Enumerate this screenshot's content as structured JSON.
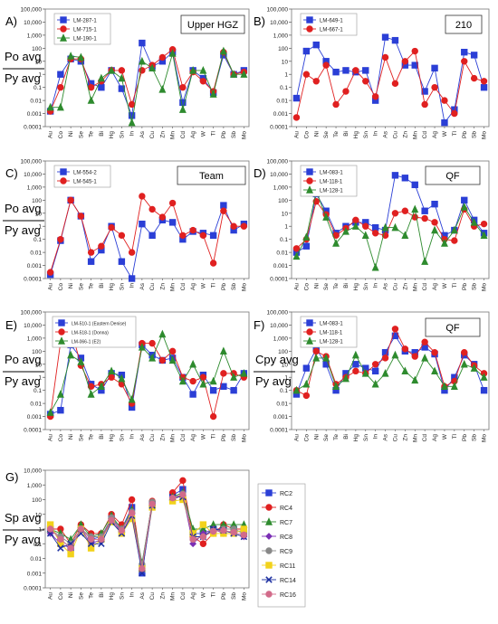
{
  "elements": [
    "Au",
    "Co",
    "Ni",
    "Se",
    "Te",
    "Bi",
    "Hg",
    "Sn",
    "In",
    "As",
    "Cu",
    "Zn",
    "Mn",
    "Cd",
    "Ag",
    "W",
    "Tl",
    "Pb",
    "Sb",
    "Mo"
  ],
  "colors": {
    "blue": "#2b3fd6",
    "red": "#e02020",
    "green": "#2e8b2e",
    "purple": "#7b2fb5",
    "yellow": "#f2d21b",
    "grey": "#888888",
    "pink": "#d26b8a",
    "navy": "#1c2fa0"
  },
  "chart_data": [
    {
      "panel_label": "A)",
      "box_label": "Upper HGZ",
      "type": "line",
      "y_label_num": "Po avg",
      "y_label_den": "Py avg",
      "ylim": [
        0.0001,
        100000
      ],
      "y_scale": "log",
      "y_ticks": [
        "100,000",
        "10,000",
        "1,000",
        "100",
        "10",
        "1",
        "0.1",
        "0.01",
        "0.001",
        "0.0001"
      ],
      "series": [
        {
          "name": "LM-287-1",
          "color": "blue",
          "marker": "square",
          "values": [
            0.0015,
            1,
            15,
            10,
            0.2,
            0.1,
            2,
            0.08,
            0.0007,
            250,
            4,
            10,
            50,
            0.007,
            2,
            0.5,
            0.04,
            30,
            1,
            2
          ]
        },
        {
          "name": "LM-715-1",
          "color": "red",
          "marker": "circle",
          "values": [
            0.0015,
            0.1,
            15,
            15,
            0.1,
            0.3,
            2,
            2,
            0.005,
            2,
            5,
            20,
            80,
            0.1,
            1.5,
            0.3,
            0.05,
            50,
            1,
            1.5
          ]
        },
        {
          "name": "LM-190-1",
          "color": "green",
          "marker": "triangle",
          "values": [
            0.003,
            0.003,
            25,
            20,
            0.01,
            0.5,
            2,
            0.5,
            0.0002,
            10,
            3,
            0.07,
            40,
            0.002,
            2,
            2,
            0.03,
            60,
            1,
            1
          ]
        }
      ]
    },
    {
      "panel_label": "B)",
      "box_label": "210",
      "type": "line",
      "y_label_num": "",
      "y_label_den": "",
      "ylim": [
        0.0001,
        100000
      ],
      "y_scale": "log",
      "y_ticks": [
        "100,000",
        "10,000",
        "1,000",
        "100",
        "10",
        "1",
        "0.1",
        "0.01",
        "0.001",
        "0.0001"
      ],
      "series": [
        {
          "name": "LM-649-1",
          "color": "blue",
          "marker": "square",
          "values": [
            0.015,
            60,
            180,
            10,
            1.5,
            2,
            1.5,
            2,
            0.01,
            700,
            400,
            5,
            5,
            0.05,
            3,
            0.0002,
            0.002,
            50,
            30,
            0.1
          ]
        },
        {
          "name": "LM-667-1",
          "color": "red",
          "marker": "circle",
          "values": [
            0.0005,
            1,
            0.3,
            5,
            0.005,
            0.05,
            2,
            0.3,
            0.02,
            20,
            0.2,
            10,
            60,
            0.005,
            0.1,
            0.01,
            0.001,
            10,
            0.5,
            0.3
          ]
        }
      ]
    },
    {
      "panel_label": "C)",
      "box_label": "Team",
      "type": "line",
      "y_label_num": "Po avg",
      "y_label_den": "Py avg",
      "ylim": [
        0.0001,
        100000
      ],
      "y_scale": "log",
      "y_ticks": [
        "100,000",
        "10,000",
        "1,000",
        "100",
        "10",
        "1",
        "0.1",
        "0.01",
        "0.001",
        "0.0001"
      ],
      "series": [
        {
          "name": "LM-554-2",
          "color": "blue",
          "marker": "square",
          "values": [
            0.0002,
            0.08,
            100,
            6,
            0.002,
            0.015,
            1,
            0.002,
            0.0001,
            1.5,
            0.2,
            3,
            2,
            0.1,
            0.4,
            0.3,
            0.2,
            40,
            0.5,
            1.5
          ]
        },
        {
          "name": "LM-545-1",
          "color": "red",
          "marker": "circle",
          "values": [
            0.0003,
            0.1,
            100,
            6,
            0.01,
            0.03,
            0.8,
            0.2,
            0.01,
            200,
            20,
            5,
            60,
            0.2,
            0.5,
            0.2,
            0.0015,
            15,
            1,
            1
          ]
        }
      ]
    },
    {
      "panel_label": "D)",
      "box_label": "QF",
      "type": "line",
      "y_label_num": "",
      "y_label_den": "",
      "ylim": [
        0.0001,
        100000
      ],
      "y_scale": "log",
      "y_ticks": [
        "100,000",
        "10,000",
        "1,000",
        "100",
        "10",
        "1",
        "0.1",
        "0.01",
        "0.001",
        "0.0001"
      ],
      "series": [
        {
          "name": "LM-083-1",
          "color": "blue",
          "marker": "square",
          "values": [
            0.01,
            0.03,
            300,
            15,
            0.3,
            1,
            2,
            2,
            0.8,
            0.5,
            8000,
            5000,
            1500,
            15,
            50,
            0.2,
            0.5,
            100,
            3,
            0.3
          ]
        },
        {
          "name": "LM-118-1",
          "color": "red",
          "marker": "circle",
          "values": [
            0.02,
            0.1,
            80,
            8,
            0.2,
            0.7,
            3,
            1,
            0.3,
            0.2,
            10,
            15,
            5,
            4,
            2,
            0.1,
            0.08,
            20,
            1,
            1.5
          ]
        },
        {
          "name": "LM-128-1",
          "color": "green",
          "marker": "triangle",
          "values": [
            0.005,
            0.15,
            500,
            5,
            0.05,
            0.4,
            1,
            0.2,
            0.0007,
            0.8,
            0.8,
            0.2,
            20,
            0.002,
            0.5,
            0.05,
            0.5,
            30,
            2,
            0.2
          ]
        }
      ]
    },
    {
      "panel_label": "E)",
      "box_label": "",
      "type": "line",
      "y_label_num": "Po avg",
      "y_label_den": "Py avg",
      "ylim": [
        0.0001,
        100000
      ],
      "y_scale": "log",
      "y_ticks": [
        "100,000",
        "10,000",
        "1,000",
        "100",
        "10",
        "1",
        "0.1",
        "0.01",
        "0.001",
        "0.0001"
      ],
      "series": [
        {
          "name": "LM-510-1 (Eastern Denise)",
          "color": "blue",
          "marker": "square",
          "values": [
            0.0015,
            0.003,
            300,
            30,
            0.3,
            0.1,
            2,
            1.5,
            0.005,
            300,
            50,
            20,
            30,
            1,
            0.05,
            1.5,
            0.1,
            0.2,
            0.1,
            2
          ]
        },
        {
          "name": "LM-518-1 (Donna)",
          "color": "red",
          "marker": "circle",
          "values": [
            0.001,
            500,
            6000,
            8,
            0.2,
            0.3,
            1,
            0.3,
            0.01,
            400,
            400,
            20,
            100,
            1,
            0.5,
            1,
            0.001,
            2,
            2,
            1
          ]
        },
        {
          "name": "LM-066-1 (E2)",
          "color": "green",
          "marker": "triangle",
          "values": [
            0.002,
            0.05,
            50,
            15,
            0.05,
            0.2,
            3,
            0.8,
            0.02,
            200,
            30,
            2000,
            20,
            0.5,
            10,
            0.3,
            0.5,
            100,
            1,
            2
          ]
        }
      ]
    },
    {
      "panel_label": "F)",
      "box_label": "QF",
      "type": "line",
      "y_label_num": "Cpy avg",
      "y_label_den": "Py avg",
      "ylim": [
        0.0001,
        100000
      ],
      "y_scale": "log",
      "y_ticks": [
        "100,000",
        "10,000",
        "1,000",
        "100",
        "10",
        "1",
        "0.1",
        "0.01",
        "0.001",
        "0.0001"
      ],
      "series": [
        {
          "name": "LM-083-1",
          "color": "blue",
          "marker": "square",
          "values": [
            0.05,
            5,
            150,
            10,
            0.1,
            2,
            10,
            5,
            3,
            80,
            1500,
            100,
            80,
            200,
            60,
            0.1,
            1,
            50,
            10,
            0.1
          ]
        },
        {
          "name": "LM-118-1",
          "color": "red",
          "marker": "circle",
          "values": [
            0.1,
            0.04,
            100,
            40,
            0.3,
            1,
            3,
            2,
            10,
            30,
            5000,
            150,
            40,
            500,
            80,
            0.2,
            0.5,
            80,
            8,
            2
          ]
        },
        {
          "name": "LM-128-1",
          "color": "green",
          "marker": "triangle",
          "values": [
            0.1,
            0.3,
            30,
            30,
            0.2,
            0.8,
            50,
            2,
            0.3,
            2,
            50,
            3,
            0.6,
            30,
            3,
            0.2,
            0.2,
            10,
            5,
            1
          ]
        }
      ]
    },
    {
      "panel_label": "G)",
      "box_label": "",
      "type": "line",
      "y_label_num": "Sp avg",
      "y_label_den": "Py avg",
      "ylim": [
        0.0001,
        10000
      ],
      "y_scale": "log",
      "y_ticks": [
        "10,000",
        "1,000",
        "100",
        "10",
        "1",
        "0.1",
        "0.01",
        "0.001",
        "0.0001"
      ],
      "series": [
        {
          "name": "RC2",
          "color": "blue",
          "marker": "square",
          "values": [
            1,
            0.2,
            0.05,
            1,
            0.2,
            0.3,
            5,
            1,
            30,
            0.001,
            50,
            null,
            200,
            500,
            0.5,
            0.5,
            1,
            1,
            1,
            0.5
          ]
        },
        {
          "name": "RC4",
          "color": "red",
          "marker": "circle",
          "values": [
            1,
            1,
            0.1,
            2,
            0.5,
            0.5,
            10,
            2,
            100,
            0.002,
            80,
            null,
            300,
            2000,
            0.3,
            0.1,
            0.5,
            2,
            1,
            1
          ]
        },
        {
          "name": "RC7",
          "color": "green",
          "marker": "triangle",
          "values": [
            1,
            0.5,
            0.2,
            2,
            0.3,
            0.5,
            8,
            1,
            20,
            0.005,
            60,
            null,
            150,
            300,
            1,
            1,
            2,
            2,
            2,
            2
          ]
        },
        {
          "name": "RC8",
          "color": "purple",
          "marker": "diamond",
          "values": [
            0.5,
            0.1,
            0.05,
            1,
            0.1,
            0.2,
            5,
            0.5,
            10,
            0.003,
            40,
            null,
            100,
            200,
            0.1,
            0.5,
            1,
            0.5,
            0.5,
            0.3
          ]
        },
        {
          "name": "RC9",
          "color": "grey",
          "marker": "circle",
          "values": [
            1,
            0.3,
            0.1,
            1,
            0.3,
            0.3,
            6,
            1,
            15,
            0.004,
            70,
            null,
            120,
            250,
            0.2,
            0.3,
            0.8,
            1,
            1,
            0.5
          ]
        },
        {
          "name": "RC11",
          "color": "yellow",
          "marker": "square",
          "values": [
            2,
            0.1,
            0.02,
            1,
            0.05,
            0.2,
            3,
            0.5,
            5,
            0.002,
            30,
            null,
            80,
            100,
            0.5,
            2,
            0.5,
            0.5,
            0.5,
            1
          ]
        },
        {
          "name": "RC14",
          "color": "navy",
          "marker": "x",
          "values": [
            0.5,
            0.05,
            0.1,
            0.5,
            0.1,
            0.1,
            3,
            0.5,
            8,
            0.001,
            40,
            null,
            150,
            150,
            0.3,
            0.3,
            1,
            0.8,
            0.5,
            0.3
          ]
        },
        {
          "name": "RC16",
          "color": "pink",
          "marker": "circle",
          "values": [
            1,
            0.2,
            0.05,
            1,
            0.2,
            0.2,
            4,
            0.8,
            12,
            0.002,
            50,
            null,
            130,
            220,
            0.2,
            0.3,
            0.7,
            0.8,
            0.6,
            0.4
          ]
        }
      ]
    }
  ]
}
